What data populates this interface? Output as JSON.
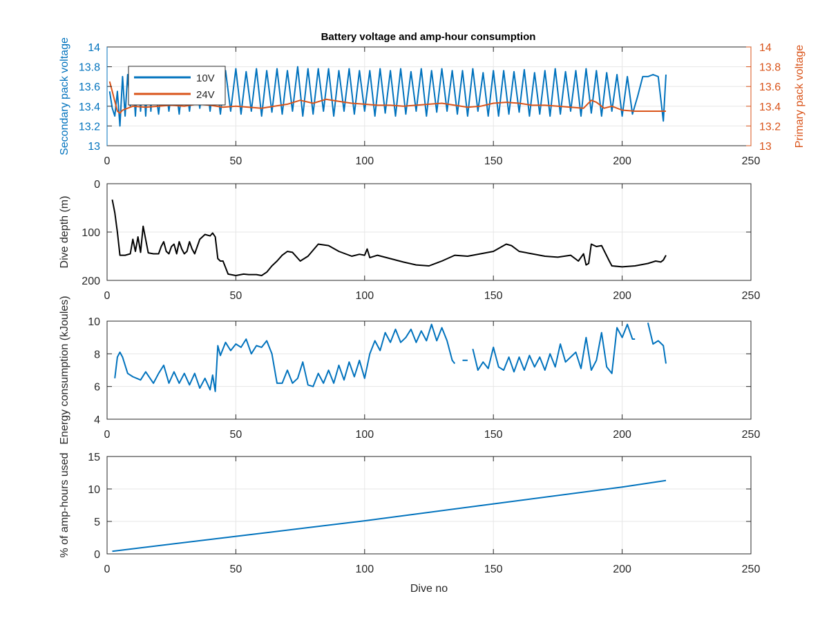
{
  "figure": {
    "title": "Battery voltage and amp-hour consumption",
    "colors": {
      "blue": "#0072BD",
      "orange": "#D95319",
      "black": "#000000",
      "grid": "#e6e6e6",
      "axis": "#262626"
    }
  },
  "chart_data": [
    {
      "type": "line",
      "title": "Battery voltage and amp-hour consumption",
      "xlabel": "",
      "ylabel": "Secondary pack voltage",
      "ylabel_right": "Primary pack voltage",
      "xlim": [
        0,
        250
      ],
      "ylim": [
        13,
        14
      ],
      "ylim_right": [
        13,
        14
      ],
      "xticks": [
        0,
        50,
        100,
        150,
        200,
        250
      ],
      "yticks": [
        13,
        13.2,
        13.4,
        13.6,
        13.8,
        14
      ],
      "grid": true,
      "legend": {
        "position": "top-left",
        "entries": [
          "10V",
          "24V"
        ]
      },
      "series": [
        {
          "name": "10V",
          "color": "#0072BD",
          "axis": "left",
          "x": [
            1,
            2,
            3,
            4,
            5,
            6,
            7,
            8,
            9,
            10,
            11,
            12,
            13,
            14,
            15,
            16,
            17,
            18,
            20,
            22,
            24,
            26,
            28,
            30,
            32,
            34,
            36,
            38,
            40,
            42,
            44,
            46,
            48,
            50,
            52,
            54,
            56,
            58,
            60,
            62,
            64,
            66,
            68,
            70,
            72,
            74,
            76,
            78,
            80,
            82,
            84,
            86,
            88,
            90,
            92,
            94,
            96,
            98,
            100,
            102,
            104,
            106,
            108,
            110,
            112,
            114,
            116,
            118,
            120,
            122,
            124,
            126,
            128,
            130,
            132,
            134,
            136,
            138,
            140,
            142,
            144,
            146,
            148,
            150,
            152,
            154,
            156,
            158,
            160,
            162,
            164,
            166,
            168,
            170,
            172,
            174,
            176,
            178,
            180,
            182,
            184,
            186,
            188,
            190,
            192,
            194,
            196,
            198,
            200,
            202,
            204,
            206,
            208,
            210,
            212,
            214,
            216,
            217
          ],
          "values": [
            13.55,
            13.38,
            13.3,
            13.55,
            13.2,
            13.7,
            13.3,
            13.72,
            13.4,
            13.75,
            13.3,
            13.72,
            13.35,
            13.78,
            13.3,
            13.75,
            13.35,
            13.72,
            13.32,
            13.78,
            13.35,
            13.75,
            13.32,
            13.78,
            13.35,
            13.78,
            13.38,
            13.8,
            13.35,
            13.78,
            13.32,
            13.76,
            13.35,
            13.78,
            13.32,
            13.75,
            13.35,
            13.78,
            13.3,
            13.76,
            13.34,
            13.78,
            13.32,
            13.76,
            13.35,
            13.8,
            13.3,
            13.78,
            13.32,
            13.78,
            13.35,
            13.78,
            13.3,
            13.76,
            13.35,
            13.78,
            13.32,
            13.76,
            13.35,
            13.76,
            13.3,
            13.78,
            13.33,
            13.76,
            13.3,
            13.78,
            13.32,
            13.75,
            13.35,
            13.78,
            13.3,
            13.76,
            13.34,
            13.78,
            13.35,
            13.76,
            13.32,
            13.76,
            13.3,
            13.78,
            13.35,
            13.74,
            13.3,
            13.76,
            13.3,
            13.76,
            13.32,
            13.75,
            13.34,
            13.77,
            13.3,
            13.74,
            13.32,
            13.76,
            13.3,
            13.78,
            13.32,
            13.75,
            13.35,
            13.76,
            13.3,
            13.78,
            13.33,
            13.76,
            13.3,
            13.74,
            13.35,
            13.72,
            13.3,
            13.7,
            13.32,
            13.5,
            13.7,
            13.7,
            13.72,
            13.7,
            13.25,
            13.72
          ]
        },
        {
          "name": "24V",
          "color": "#D95319",
          "axis": "right",
          "x": [
            1,
            2,
            3,
            4,
            5,
            6,
            8,
            10,
            15,
            20,
            25,
            30,
            35,
            40,
            45,
            50,
            55,
            60,
            65,
            70,
            75,
            80,
            85,
            90,
            95,
            100,
            105,
            110,
            115,
            120,
            125,
            130,
            135,
            140,
            145,
            150,
            155,
            160,
            165,
            170,
            175,
            180,
            185,
            188,
            190,
            193,
            196,
            200,
            205,
            210,
            215,
            217
          ],
          "values": [
            13.65,
            13.55,
            13.45,
            13.35,
            13.33,
            13.36,
            13.38,
            13.4,
            13.39,
            13.4,
            13.41,
            13.4,
            13.42,
            13.41,
            13.39,
            13.4,
            13.39,
            13.38,
            13.4,
            13.42,
            13.46,
            13.43,
            13.47,
            13.45,
            13.43,
            13.42,
            13.41,
            13.41,
            13.4,
            13.41,
            13.42,
            13.43,
            13.41,
            13.39,
            13.4,
            13.43,
            13.44,
            13.43,
            13.41,
            13.41,
            13.4,
            13.39,
            13.38,
            13.46,
            13.44,
            13.38,
            13.4,
            13.36,
            13.35,
            13.35,
            13.35,
            13.35
          ]
        }
      ]
    },
    {
      "type": "line",
      "title": "",
      "xlabel": "",
      "ylabel": "Dive depth (m)",
      "xlim": [
        0,
        250
      ],
      "ylim": [
        0,
        200
      ],
      "y_reversed": true,
      "xticks": [
        0,
        50,
        100,
        150,
        200,
        250
      ],
      "yticks": [
        0,
        100,
        200
      ],
      "grid": true,
      "series": [
        {
          "color": "#000000",
          "x": [
            2,
            3,
            4,
            5,
            7,
            9,
            10,
            11,
            12,
            13,
            14,
            16,
            18,
            20,
            21,
            22,
            23,
            24,
            25,
            26,
            27,
            28,
            29,
            30,
            31,
            32,
            33,
            34,
            35,
            36,
            38,
            40,
            41,
            42,
            43,
            44,
            45,
            47,
            50,
            53,
            55,
            58,
            60,
            62,
            64,
            66,
            68,
            70,
            72,
            75,
            78,
            82,
            86,
            90,
            95,
            98,
            100,
            101,
            102,
            105,
            110,
            115,
            120,
            125,
            130,
            135,
            140,
            145,
            150,
            155,
            157,
            160,
            165,
            170,
            175,
            180,
            183,
            185,
            186,
            187,
            188,
            190,
            192,
            195,
            196,
            200,
            205,
            210,
            213,
            215,
            216,
            217
          ],
          "values": [
            33,
            60,
            100,
            148,
            148,
            145,
            115,
            140,
            110,
            142,
            88,
            143,
            145,
            145,
            130,
            120,
            140,
            145,
            130,
            125,
            145,
            120,
            135,
            145,
            140,
            120,
            135,
            145,
            130,
            115,
            105,
            108,
            102,
            110,
            155,
            160,
            160,
            187,
            190,
            187,
            188,
            188,
            190,
            183,
            170,
            160,
            148,
            140,
            142,
            160,
            150,
            125,
            128,
            140,
            150,
            146,
            148,
            135,
            153,
            148,
            155,
            162,
            168,
            170,
            160,
            148,
            150,
            145,
            140,
            125,
            128,
            140,
            145,
            150,
            152,
            148,
            160,
            145,
            168,
            165,
            125,
            130,
            128,
            160,
            170,
            172,
            170,
            165,
            160,
            162,
            158,
            148
          ]
        }
      ]
    },
    {
      "type": "line",
      "title": "",
      "xlabel": "",
      "ylabel": "Energy consumption (kJoules)",
      "xlim": [
        0,
        250
      ],
      "ylim": [
        4,
        10
      ],
      "xticks": [
        0,
        50,
        100,
        150,
        200,
        250
      ],
      "yticks": [
        4,
        6,
        8,
        10
      ],
      "grid": true,
      "series": [
        {
          "color": "#0072BD",
          "x": [
            3,
            4,
            5,
            6,
            8,
            10,
            13,
            15,
            18,
            20,
            22,
            24,
            26,
            28,
            30,
            32,
            34,
            36,
            38,
            40,
            41,
            42,
            43,
            44,
            46,
            48,
            50,
            52,
            54,
            56,
            58,
            60,
            62,
            64,
            66,
            68,
            70,
            72,
            74,
            76,
            78,
            80,
            82,
            84,
            86,
            88,
            90,
            92,
            94,
            96,
            98,
            100,
            102,
            104,
            106,
            108,
            110,
            112,
            114,
            116,
            118,
            120,
            122,
            124,
            126,
            128,
            130,
            132,
            134,
            135,
            null,
            138,
            140,
            null,
            142,
            144,
            146,
            148,
            150,
            152,
            154,
            156,
            158,
            160,
            162,
            164,
            166,
            168,
            170,
            172,
            174,
            176,
            178,
            180,
            182,
            184,
            186,
            188,
            190,
            192,
            194,
            196,
            198,
            200,
            202,
            204,
            205,
            null,
            210,
            212,
            214,
            216,
            217
          ],
          "values": [
            6.5,
            7.8,
            8.1,
            7.8,
            6.8,
            6.6,
            6.4,
            6.9,
            6.2,
            6.8,
            7.3,
            6.2,
            6.9,
            6.2,
            6.8,
            6.1,
            6.8,
            5.9,
            6.5,
            5.8,
            6.7,
            5.7,
            8.5,
            7.9,
            8.7,
            8.2,
            8.6,
            8.4,
            8.9,
            8.0,
            8.5,
            8.4,
            8.8,
            8.0,
            6.2,
            6.2,
            7.0,
            6.2,
            6.5,
            7.5,
            6.1,
            6.0,
            6.8,
            6.2,
            7.0,
            6.2,
            7.3,
            6.4,
            7.5,
            6.6,
            7.6,
            6.5,
            8.0,
            8.8,
            8.2,
            9.3,
            8.7,
            9.5,
            8.7,
            9.0,
            9.5,
            8.7,
            9.4,
            8.8,
            9.8,
            8.8,
            9.6,
            8.8,
            7.6,
            7.4,
            null,
            7.6,
            7.6,
            null,
            8.3,
            7.0,
            7.5,
            7.1,
            8.4,
            7.2,
            7.0,
            7.8,
            6.9,
            7.8,
            7.0,
            7.9,
            7.2,
            7.8,
            7.0,
            8.0,
            7.2,
            8.6,
            7.5,
            7.8,
            8.1,
            7.1,
            9.0,
            7.0,
            7.6,
            9.3,
            7.2,
            6.8,
            9.6,
            9.0,
            9.8,
            8.9,
            8.9,
            null,
            9.9,
            8.6,
            8.8,
            8.5,
            7.4
          ]
        }
      ]
    },
    {
      "type": "line",
      "title": "",
      "xlabel": "Dive no",
      "ylabel": "% of amp-hours used",
      "xlim": [
        0,
        250
      ],
      "ylim": [
        0,
        15
      ],
      "xticks": [
        0,
        50,
        100,
        150,
        200,
        250
      ],
      "yticks": [
        0,
        5,
        10,
        15
      ],
      "grid": true,
      "series": [
        {
          "color": "#0072BD",
          "x": [
            2,
            50,
            100,
            150,
            200,
            217
          ],
          "values": [
            0.4,
            2.7,
            5.1,
            7.7,
            10.3,
            11.3
          ]
        }
      ]
    }
  ]
}
